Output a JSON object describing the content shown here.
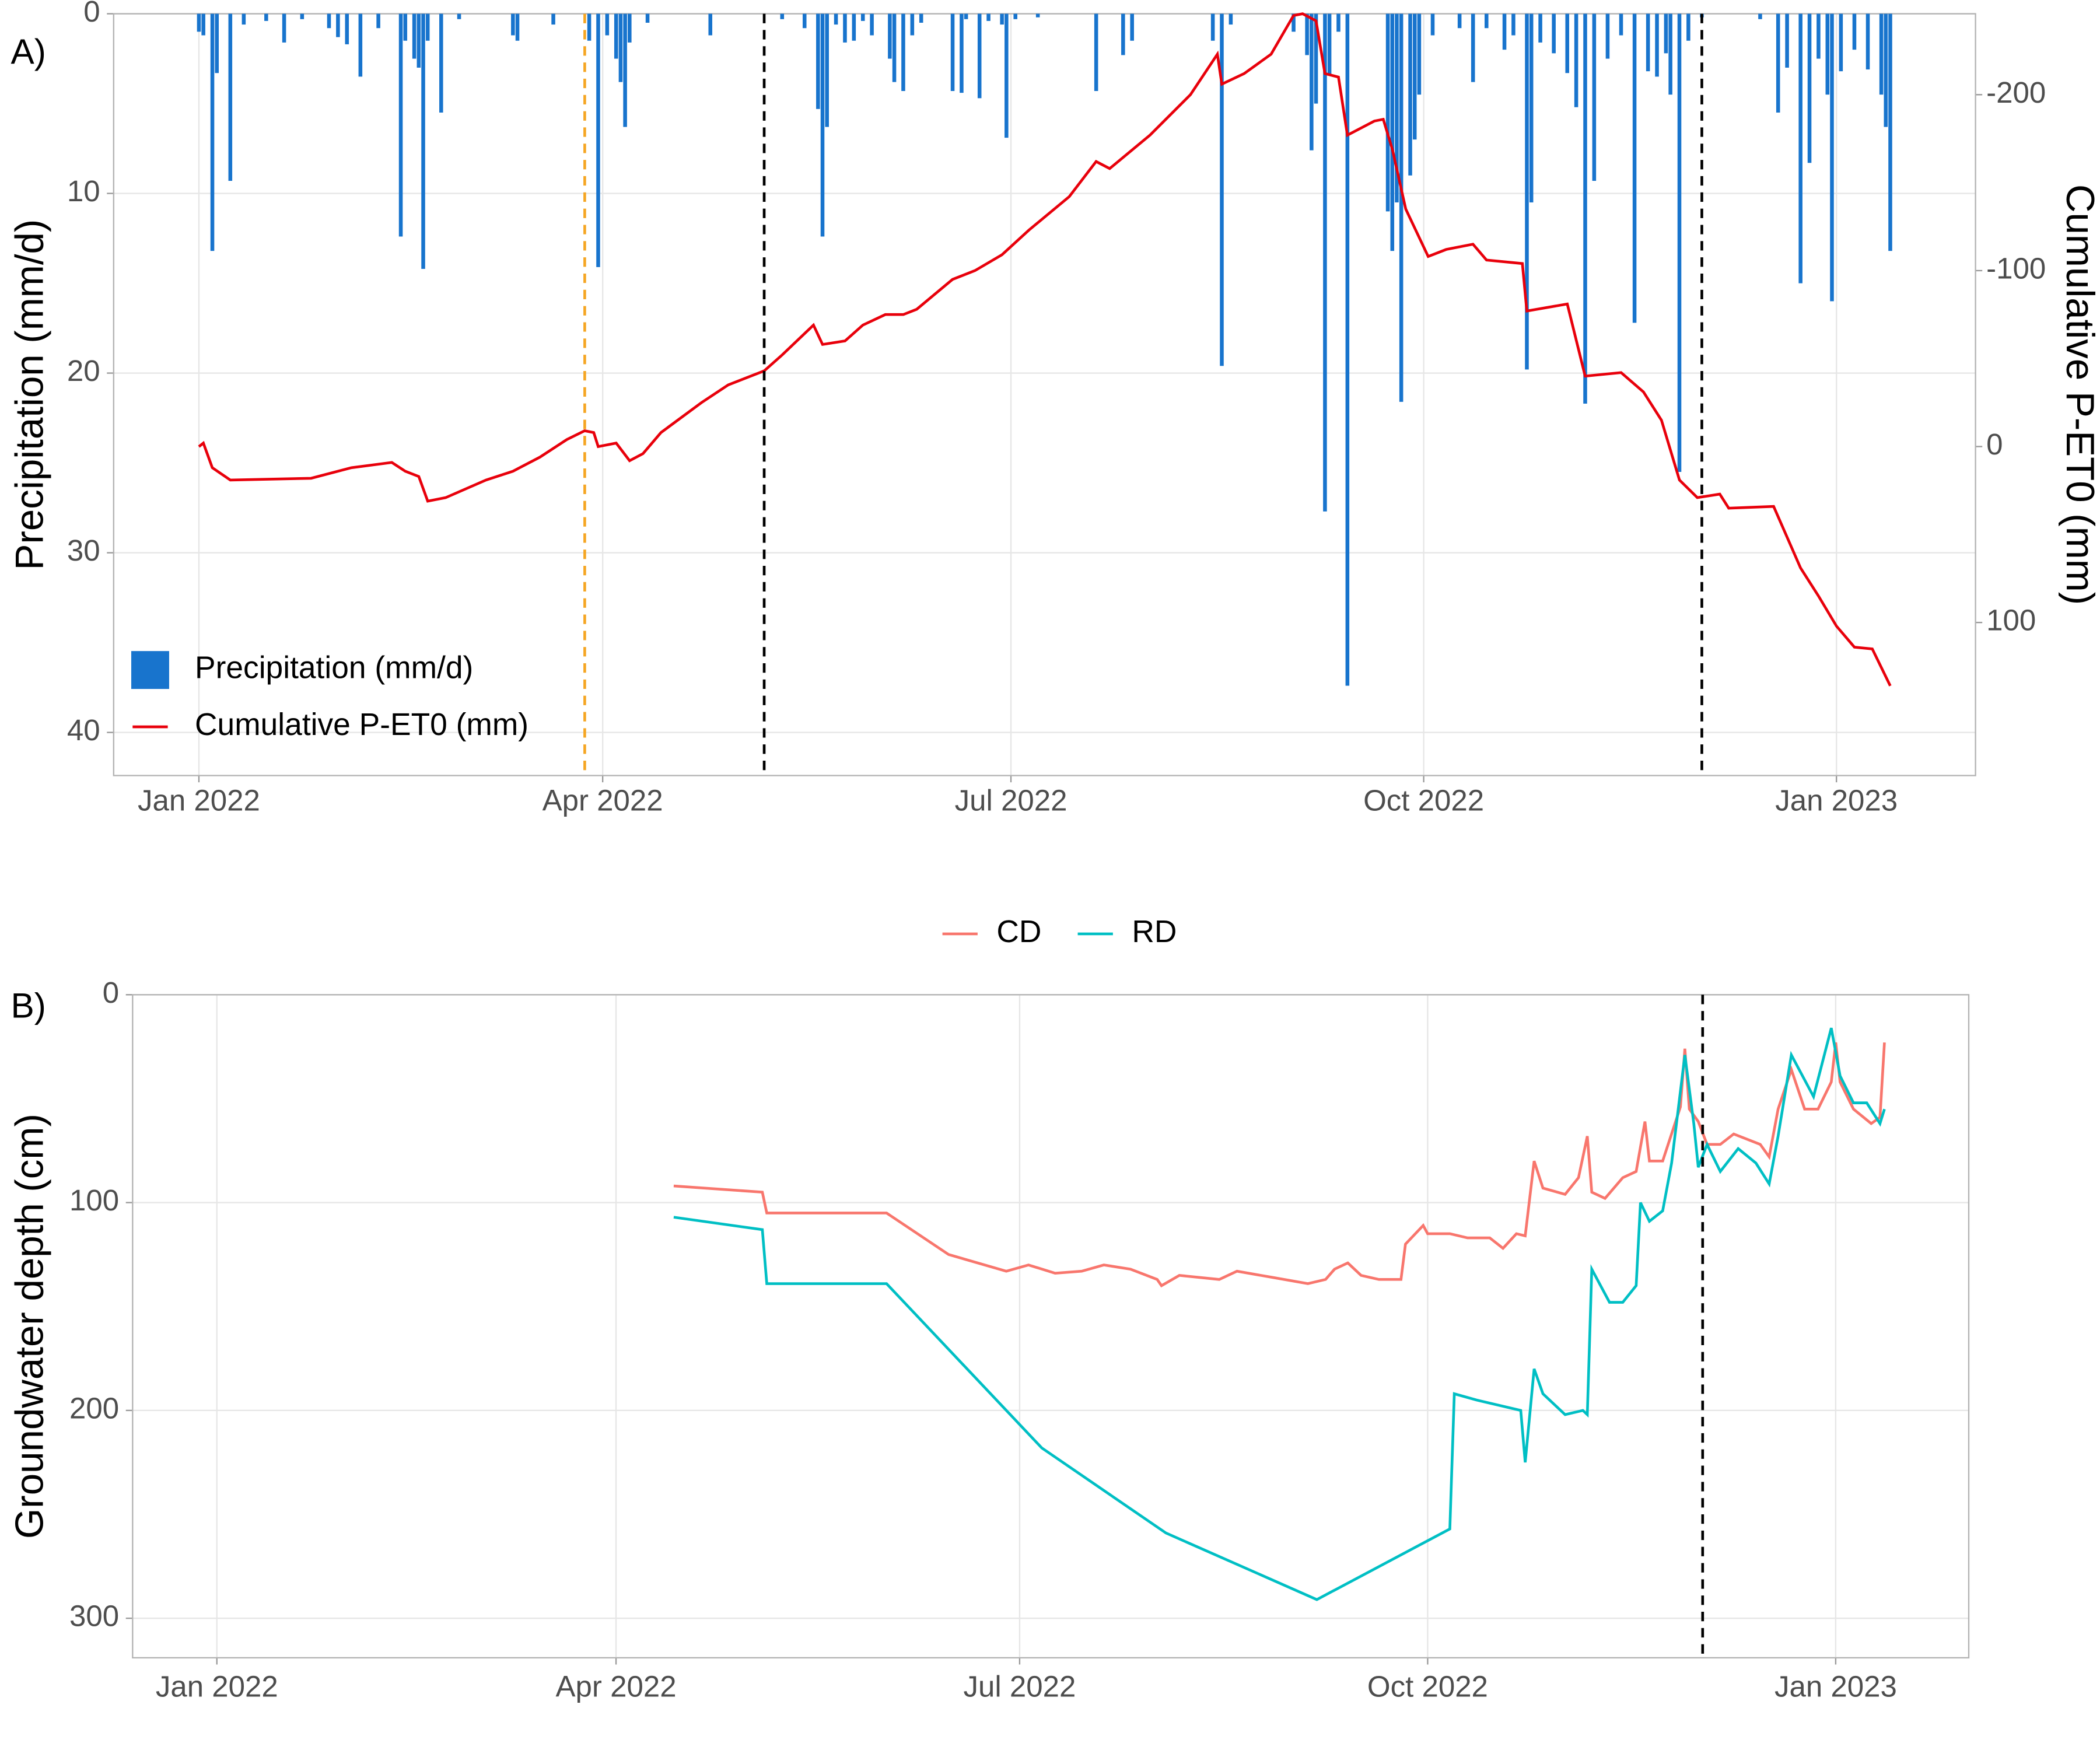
{
  "chart_data": [
    {
      "type": "bar",
      "panel_label": "A)",
      "y_label": "Precipitation (mm/d)",
      "y2_label": "Cumulative P-ET0 (mm)",
      "xlim": [
        -19,
        396
      ],
      "xticks": [
        {
          "value": 0,
          "label": "Jan 2022"
        },
        {
          "value": 90,
          "label": "Apr 2022"
        },
        {
          "value": 181,
          "label": "Jul 2022"
        },
        {
          "value": 273,
          "label": "Oct 2022"
        },
        {
          "value": 365,
          "label": "Jan 2023"
        }
      ],
      "ylim": [
        0,
        42.4
      ],
      "yticks": [
        0,
        10,
        20,
        30,
        40
      ],
      "y_inverted": true,
      "y2lim": [
        -246,
        187
      ],
      "y2ticks": [
        -200,
        -100,
        0,
        100
      ],
      "y2_inverted": true,
      "grid": true,
      "legend": "bottom-left",
      "vlines": [
        {
          "x": 86,
          "color": "#f5a623"
        },
        {
          "x": 126,
          "color": "#000000"
        },
        {
          "x": 335,
          "color": "#000000"
        }
      ],
      "series": [
        {
          "name": "Precipitation (mm/d)",
          "color": "#1874cd",
          "type": "bar",
          "x": [
            0,
            1,
            3,
            4,
            7,
            10,
            15,
            19,
            23,
            29,
            31,
            33,
            36,
            40,
            45,
            46,
            48,
            49,
            50,
            51,
            54,
            58,
            70,
            71,
            79,
            87,
            89,
            91,
            93,
            94,
            95,
            96,
            100,
            114,
            130,
            135,
            138,
            139,
            140,
            142,
            144,
            146,
            148,
            150,
            154,
            155,
            157,
            159,
            161,
            168,
            170,
            171,
            174,
            176,
            179,
            180,
            182,
            187,
            200,
            206,
            208,
            226,
            228,
            230,
            244,
            247,
            248,
            249,
            251,
            252,
            254,
            256,
            265,
            266,
            267,
            268,
            270,
            271,
            272,
            275,
            281,
            284,
            287,
            291,
            293,
            296,
            297,
            299,
            302,
            305,
            307,
            309,
            311,
            314,
            317,
            320,
            323,
            325,
            327,
            328,
            330,
            332,
            335,
            348,
            352,
            354,
            357,
            359,
            361,
            363,
            364,
            366,
            369,
            372,
            375,
            376,
            377
          ],
          "values": [
            1,
            1.2,
            13.2,
            3.3,
            9.3,
            0.6,
            0.4,
            1.6,
            0.3,
            0.8,
            1.3,
            1.7,
            3.5,
            0.8,
            12.4,
            1.5,
            2.5,
            3,
            14.2,
            1.5,
            5.5,
            0.3,
            1.2,
            1.5,
            0.6,
            1.5,
            14.1,
            1.2,
            2.5,
            3.8,
            6.3,
            1.6,
            0.5,
            1.2,
            0.3,
            0.8,
            5.3,
            12.4,
            6.3,
            0.6,
            1.6,
            1.5,
            0.4,
            1.2,
            2.5,
            3.8,
            4.3,
            1.2,
            0.5,
            4.3,
            4.4,
            0.3,
            4.7,
            0.4,
            0.6,
            6.9,
            0.3,
            0.2,
            4.3,
            2.3,
            1.5,
            1.5,
            19.6,
            0.6,
            1,
            2.3,
            7.6,
            5,
            27.7,
            3.4,
            1,
            37.4,
            11,
            13.2,
            10.5,
            21.6,
            9,
            7,
            4.5,
            1.2,
            0.8,
            3.8,
            0.8,
            2,
            1.2,
            19.8,
            10.5,
            1.6,
            2.2,
            3.3,
            5.2,
            21.7,
            9.3,
            2.5,
            1.2,
            17.2,
            3.2,
            3.5,
            2.2,
            4.5,
            25.5,
            1.5,
            0.2,
            0.3,
            5.5,
            3,
            15,
            8.3,
            2.5,
            4.5,
            16,
            3.2,
            2,
            3.1,
            4.5,
            6.3,
            13.2
          ]
        },
        {
          "name": "Cumulative P-ET0 (mm)",
          "color": "#e8000b",
          "type": "line",
          "axis": "y2",
          "x": [
            0,
            1,
            3,
            7,
            25,
            34,
            43,
            46,
            49,
            51,
            55,
            64,
            70,
            76,
            82,
            86,
            88,
            89,
            93,
            96,
            99,
            103,
            112,
            118,
            126,
            130,
            137,
            139,
            144,
            148,
            153,
            157,
            160,
            168,
            173,
            179,
            185,
            194,
            200,
            203,
            212,
            221,
            227,
            228,
            233,
            239,
            244,
            246,
            249,
            251,
            254,
            256,
            262,
            264,
            266,
            269,
            274,
            278,
            284,
            287,
            295,
            296,
            305,
            309,
            317,
            322,
            326,
            330,
            334,
            339,
            341,
            351,
            357,
            361,
            365,
            369,
            373,
            377
          ],
          "values": [
            0,
            -2,
            12,
            19,
            18,
            12,
            9,
            14,
            17,
            31,
            29,
            19,
            14,
            6,
            -4,
            -9,
            -8,
            0,
            -2,
            8,
            4,
            -8,
            -25,
            -35,
            -43,
            -52,
            -69,
            -58,
            -60,
            -69,
            -75,
            -75,
            -78,
            -95,
            -100,
            -109,
            -123,
            -142,
            -162,
            -158,
            -177,
            -200,
            -223,
            -206,
            -212,
            -223,
            -245,
            -246,
            -242,
            -212,
            -210,
            -177,
            -185,
            -186,
            -169,
            -135,
            -108,
            -112,
            -115,
            -106,
            -104,
            -77,
            -81,
            -40,
            -42,
            -31,
            -15,
            19,
            29,
            27,
            35,
            34,
            69,
            85,
            102,
            114,
            115,
            136
          ]
        }
      ]
    },
    {
      "type": "line",
      "panel_label": "B)",
      "y_label": "Groundwater depth (cm)",
      "xlim": [
        -19,
        395
      ],
      "xticks": [
        {
          "value": 0,
          "label": "Jan 2022"
        },
        {
          "value": 90,
          "label": "Apr 2022"
        },
        {
          "value": 181,
          "label": "Jul 2022"
        },
        {
          "value": 273,
          "label": "Oct 2022"
        },
        {
          "value": 365,
          "label": "Jan 2023"
        }
      ],
      "ylim": [
        0,
        319
      ],
      "yticks": [
        0,
        100,
        200,
        300
      ],
      "y_inverted": true,
      "grid": true,
      "legend": "top",
      "vlines": [
        {
          "x": 335,
          "color": "#000000"
        }
      ],
      "series": [
        {
          "name": "CD",
          "color": "#f8766d",
          "x": [
            103,
            123,
            124,
            151,
            165,
            178,
            183,
            189,
            195,
            200,
            206,
            212,
            213,
            217,
            226,
            230,
            238,
            246,
            250,
            252,
            255,
            258,
            262,
            267,
            268,
            272,
            273,
            278,
            282,
            287,
            290,
            293,
            295,
            297,
            299,
            304,
            307,
            309,
            310,
            313,
            317,
            320,
            322,
            323,
            326,
            330,
            331,
            332,
            334,
            336,
            339,
            342,
            348,
            350,
            352,
            355,
            358,
            361,
            364,
            365,
            366,
            369,
            373,
            375,
            376
          ],
          "values": [
            92,
            95,
            105,
            105,
            125,
            133,
            130,
            134,
            133,
            130,
            132,
            137,
            140,
            135,
            137,
            133,
            136,
            139,
            137,
            132,
            129,
            135,
            137,
            137,
            120,
            111,
            115,
            115,
            117,
            117,
            122,
            115,
            116,
            80,
            93,
            96,
            88,
            68,
            95,
            98,
            88,
            85,
            61,
            80,
            80,
            54,
            26,
            55,
            61,
            72,
            72,
            67,
            72,
            78,
            55,
            36,
            55,
            55,
            42,
            23,
            42,
            55,
            62,
            59,
            23
          ]
        },
        {
          "name": "RD",
          "color": "#00bfc4",
          "x": [
            103,
            123,
            124,
            151,
            186,
            214,
            248,
            278,
            279,
            284,
            294,
            295,
            297,
            299,
            304,
            308,
            309,
            310,
            314,
            317,
            320,
            321,
            323,
            326,
            328,
            331,
            333,
            334,
            336,
            339,
            343,
            347,
            350,
            352,
            355,
            360,
            364,
            366,
            369,
            372,
            375,
            376
          ],
          "values": [
            107,
            113,
            139,
            139,
            218,
            259,
            291,
            257,
            192,
            195,
            200,
            225,
            180,
            192,
            202,
            200,
            202,
            132,
            148,
            148,
            140,
            100,
            109,
            104,
            81,
            29,
            62,
            83,
            72,
            85,
            74,
            81,
            91,
            68,
            29,
            49,
            16,
            39,
            52,
            52,
            62,
            55
          ]
        }
      ]
    }
  ]
}
